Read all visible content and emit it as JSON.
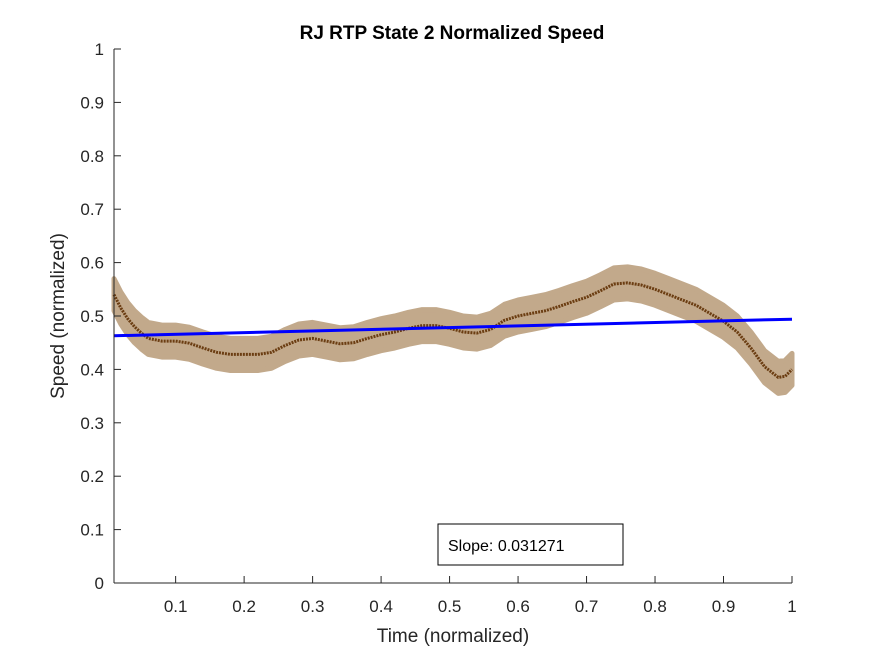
{
  "chart_data": {
    "type": "line",
    "title": "RJ  RTP State 2 Normalized Speed",
    "xlabel": "Time (normalized)",
    "ylabel": "Speed (normalized)",
    "xlim": [
      0.01,
      1.0
    ],
    "ylim": [
      0,
      1
    ],
    "xticks": [
      "0.1",
      "0.2",
      "0.3",
      "0.4",
      "0.5",
      "0.6",
      "0.7",
      "0.8",
      "0.9",
      "1"
    ],
    "xtick_values": [
      0.1,
      0.2,
      0.3,
      0.4,
      0.5,
      0.6,
      0.7,
      0.8,
      0.9,
      1.0
    ],
    "yticks": [
      "0",
      "0.1",
      "0.2",
      "0.3",
      "0.4",
      "0.5",
      "0.6",
      "0.7",
      "0.8",
      "0.9",
      "1"
    ],
    "ytick_values": [
      0,
      0.1,
      0.2,
      0.3,
      0.4,
      0.5,
      0.6,
      0.7,
      0.8,
      0.9,
      1.0
    ],
    "grid": false,
    "series": [
      {
        "kind": "mean",
        "color": "#6b3d12",
        "band_color": "#c2a98b",
        "band_halfwidth": 0.03,
        "x": [
          0.01,
          0.02,
          0.03,
          0.04,
          0.05,
          0.06,
          0.08,
          0.1,
          0.12,
          0.14,
          0.16,
          0.18,
          0.2,
          0.22,
          0.24,
          0.26,
          0.28,
          0.3,
          0.32,
          0.34,
          0.36,
          0.38,
          0.4,
          0.42,
          0.44,
          0.46,
          0.48,
          0.5,
          0.52,
          0.54,
          0.56,
          0.58,
          0.6,
          0.62,
          0.64,
          0.66,
          0.68,
          0.7,
          0.72,
          0.74,
          0.76,
          0.78,
          0.8,
          0.82,
          0.84,
          0.86,
          0.88,
          0.9,
          0.92,
          0.94,
          0.96,
          0.98,
          0.99,
          1.0
        ],
        "y": [
          0.54,
          0.515,
          0.495,
          0.48,
          0.468,
          0.458,
          0.453,
          0.453,
          0.449,
          0.44,
          0.432,
          0.428,
          0.428,
          0.428,
          0.432,
          0.445,
          0.455,
          0.458,
          0.453,
          0.448,
          0.45,
          0.458,
          0.465,
          0.47,
          0.477,
          0.482,
          0.482,
          0.477,
          0.47,
          0.468,
          0.475,
          0.492,
          0.5,
          0.505,
          0.51,
          0.518,
          0.527,
          0.535,
          0.547,
          0.56,
          0.562,
          0.558,
          0.55,
          0.54,
          0.53,
          0.52,
          0.505,
          0.49,
          0.47,
          0.44,
          0.405,
          0.385,
          0.387,
          0.4
        ]
      },
      {
        "kind": "fit",
        "color": "#0000ff",
        "x": [
          0.01,
          1.0
        ],
        "y": [
          0.463,
          0.494
        ]
      }
    ],
    "annotation": {
      "text": "Slope: 0.031271"
    }
  }
}
